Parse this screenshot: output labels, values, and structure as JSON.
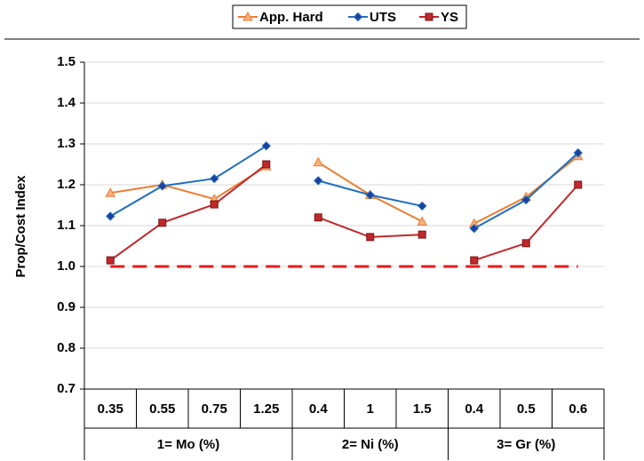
{
  "chart_data": {
    "type": "line",
    "y_label": "Prop/Cost Index",
    "groups": [
      {
        "name": "1= Mo (%)",
        "categories": [
          "0.35",
          "0.55",
          "0.75",
          "1.25"
        ]
      },
      {
        "name": "2= Ni (%)",
        "categories": [
          "0.4",
          "1",
          "1.5"
        ]
      },
      {
        "name": "3= Gr (%)",
        "categories": [
          "0.4",
          "0.5",
          "0.6"
        ]
      }
    ],
    "series": [
      {
        "name": "App. Hard",
        "color": "#ED7D31",
        "marker": "triangle",
        "values": [
          1.18,
          1.2,
          1.165,
          1.245,
          1.255,
          1.175,
          1.11,
          1.105,
          1.17,
          1.27
        ]
      },
      {
        "name": "UTS",
        "color": "#1F6FC0",
        "marker": "diamond",
        "values": [
          1.123,
          1.197,
          1.215,
          1.295,
          1.21,
          1.175,
          1.148,
          1.093,
          1.163,
          1.278
        ]
      },
      {
        "name": "YS",
        "color": "#C0282B",
        "marker": "square",
        "values": [
          1.015,
          1.107,
          1.152,
          1.25,
          1.12,
          1.072,
          1.078,
          1.015,
          1.057,
          1.2
        ]
      }
    ],
    "reference_line": {
      "value": 1,
      "color": "#E8191A"
    },
    "ylim": [
      0.7,
      1.5
    ],
    "yticks": [
      0.7,
      0.8,
      0.9,
      {
        "value": 1,
        "label": "1.0"
      },
      1.1,
      1.2,
      1.3,
      1.4,
      1.5
    ],
    "grid": true,
    "legend": "top"
  }
}
